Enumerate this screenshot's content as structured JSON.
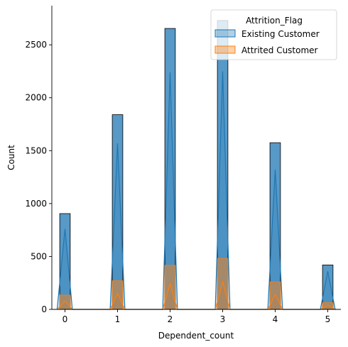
{
  "chart_data": {
    "type": "bar",
    "title": "",
    "xlabel": "Dependent_count",
    "ylabel": "Count",
    "xlim": [
      -0.25,
      5.25
    ],
    "ylim": [
      0,
      2870
    ],
    "xticks": [
      0,
      1,
      2,
      3,
      4,
      5
    ],
    "yticks": [
      0,
      500,
      1000,
      1500,
      2000,
      2500
    ],
    "bin_width": 0.2,
    "grid": false,
    "legend": {
      "title": "Attrition_Flag",
      "placement": "top-right",
      "entries": [
        "Existing Customer",
        "Attrited Customer"
      ]
    },
    "series": [
      {
        "name": "Existing Customer",
        "color": "#1f77b4",
        "bins": [
          {
            "x": 0,
            "value": 905
          },
          {
            "x": 1,
            "value": 1840
          },
          {
            "x": 2,
            "value": 2655
          },
          {
            "x": 3,
            "value": 2730
          },
          {
            "x": 4,
            "value": 1575
          },
          {
            "x": 5,
            "value": 420
          }
        ],
        "kde_peaks": [
          760,
          1570,
          2240,
          2250,
          1320,
          360
        ]
      },
      {
        "name": "Attrited Customer",
        "color": "#ff7f0e",
        "bins": [
          {
            "x": 0,
            "value": 135
          },
          {
            "x": 1,
            "value": 270
          },
          {
            "x": 2,
            "value": 417
          },
          {
            "x": 3,
            "value": 482
          },
          {
            "x": 4,
            "value": 260
          },
          {
            "x": 5,
            "value": 64
          }
        ],
        "kde_peaks": [
          80,
          150,
          240,
          260,
          140,
          40
        ]
      }
    ]
  }
}
